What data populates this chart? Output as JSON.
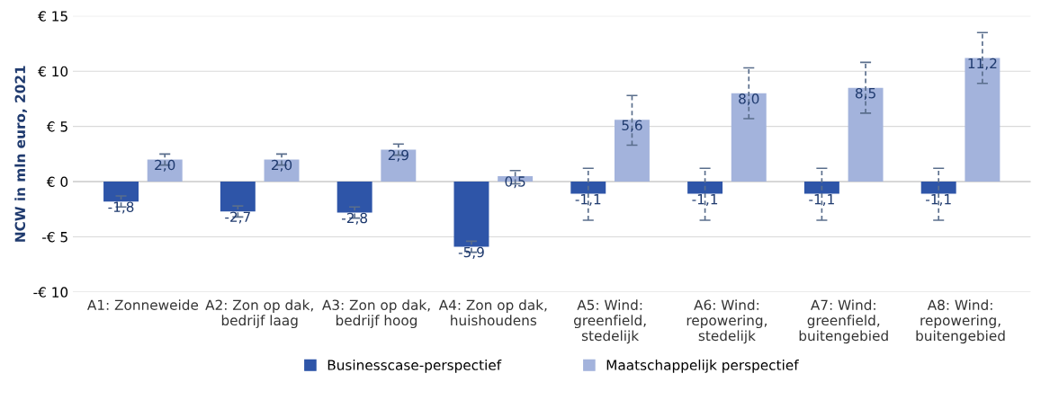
{
  "chart_data": {
    "type": "bar",
    "ylabel": "NCW in mln euro, 2021",
    "categories": [
      "A1: Zonneweide",
      "A2: Zon op dak,\nbedrijf laag",
      "A3: Zon op dak,\nbedrijf hoog",
      "A4: Zon op dak,\nhuishoudens",
      "A5: Wind:\ngreenfield,\nstedelijk",
      "A6: Wind:\nrepowering,\nstedelijk",
      "A7: Wind:\ngreenfield,\nbuitengebied",
      "A8: Wind:\nrepowering,\nbuitengebied"
    ],
    "series": [
      {
        "name": "Businesscase-perspectief",
        "color": "#2e55a8",
        "values": [
          -1.8,
          -2.7,
          -2.8,
          -5.9,
          -1.1,
          -1.1,
          -1.1,
          -1.1
        ],
        "value_labels": [
          "-1,8",
          "-2,7",
          "-2,8",
          "-5,9",
          "-1,1",
          "-1,1",
          "-1,1",
          "-1,1"
        ],
        "errors": [
          [
            -2.3,
            -1.3
          ],
          [
            -3.2,
            -2.2
          ],
          [
            -3.3,
            -2.3
          ],
          [
            -6.4,
            -5.4
          ],
          [
            -3.5,
            1.2
          ],
          [
            -3.5,
            1.2
          ],
          [
            -3.5,
            1.2
          ],
          [
            -3.5,
            1.2
          ]
        ]
      },
      {
        "name": "Maatschappelijk perspectief",
        "color": "#a3b3dc",
        "values": [
          2.0,
          2.0,
          2.9,
          0.5,
          5.6,
          8.0,
          8.5,
          11.2
        ],
        "value_labels": [
          "2,0",
          "2,0",
          "2,9",
          "0,5",
          "5,6",
          "8,0",
          "8,5",
          "11,2"
        ],
        "errors": [
          [
            1.5,
            2.5
          ],
          [
            1.5,
            2.5
          ],
          [
            2.4,
            3.4
          ],
          [
            -0.2,
            1.0
          ],
          [
            3.3,
            7.8
          ],
          [
            5.7,
            10.3
          ],
          [
            6.2,
            10.8
          ],
          [
            8.9,
            13.5
          ]
        ]
      }
    ],
    "ylim": [
      -10,
      15
    ],
    "yticks": [
      {
        "value": -10,
        "label": "-€ 10"
      },
      {
        "value": -5,
        "label": "-€ 5"
      },
      {
        "value": 0,
        "label": "€ 0"
      },
      {
        "value": 5,
        "label": "€ 5"
      },
      {
        "value": 10,
        "label": "€ 10"
      },
      {
        "value": 15,
        "label": "€ 15"
      }
    ],
    "grid": "y",
    "legend": "bottom"
  }
}
